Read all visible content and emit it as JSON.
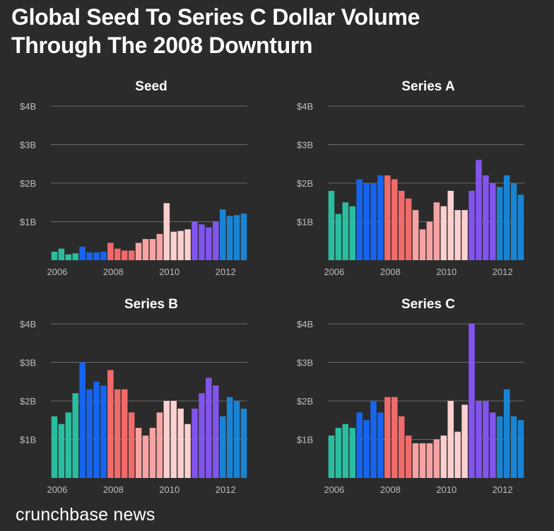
{
  "header": {
    "title_line1": "Global Seed To Series C Dollar Volume",
    "title_line2": "Through The 2008 Downturn"
  },
  "brand": "crunchbase news",
  "colors": {
    "2006": "#2bbd9f",
    "2007": "#1565f0",
    "2008": "#f26b6b",
    "2009": "#f7a3a3",
    "2010": "#fdd0d0",
    "2011": "#8155ee",
    "2012": "#1a84d4"
  },
  "chart_data": [
    {
      "type": "bar",
      "title": "Seed",
      "ylim": [
        0,
        4
      ],
      "yticks": [
        1,
        2,
        3,
        4
      ],
      "ytick_labels": [
        "$1B",
        "$2B",
        "$3B",
        "$4B"
      ],
      "xtick_labels": [
        "2006",
        "2008",
        "2010",
        "2012"
      ],
      "grid": true,
      "quarters": [
        "2006 Q1",
        "2006 Q2",
        "2006 Q3",
        "2006 Q4",
        "2007 Q1",
        "2007 Q2",
        "2007 Q3",
        "2007 Q4",
        "2008 Q1",
        "2008 Q2",
        "2008 Q3",
        "2008 Q4",
        "2009 Q1",
        "2009 Q2",
        "2009 Q3",
        "2009 Q4",
        "2010 Q1",
        "2010 Q2",
        "2010 Q3",
        "2010 Q4",
        "2011 Q1",
        "2011 Q2",
        "2011 Q3",
        "2011 Q4",
        "2012 Q1",
        "2012 Q2",
        "2012 Q3",
        "2012 Q4"
      ],
      "values": [
        0.22,
        0.3,
        0.15,
        0.18,
        0.35,
        0.2,
        0.2,
        0.22,
        0.45,
        0.3,
        0.25,
        0.25,
        0.45,
        0.55,
        0.55,
        0.68,
        1.48,
        0.74,
        0.76,
        0.8,
        1.0,
        0.93,
        0.85,
        1.0,
        1.32,
        1.15,
        1.17,
        1.21
      ]
    },
    {
      "type": "bar",
      "title": "Series A",
      "ylim": [
        0,
        4
      ],
      "yticks": [
        1,
        2,
        3,
        4
      ],
      "ytick_labels": [
        "$1B",
        "$2B",
        "$3B",
        "$4B"
      ],
      "xtick_labels": [
        "2006",
        "2008",
        "2010",
        "2012"
      ],
      "grid": true,
      "quarters": [
        "2006 Q1",
        "2006 Q2",
        "2006 Q3",
        "2006 Q4",
        "2007 Q1",
        "2007 Q2",
        "2007 Q3",
        "2007 Q4",
        "2008 Q1",
        "2008 Q2",
        "2008 Q3",
        "2008 Q4",
        "2009 Q1",
        "2009 Q2",
        "2009 Q3",
        "2009 Q4",
        "2010 Q1",
        "2010 Q2",
        "2010 Q3",
        "2010 Q4",
        "2011 Q1",
        "2011 Q2",
        "2011 Q3",
        "2011 Q4",
        "2012 Q1",
        "2012 Q2",
        "2012 Q3",
        "2012 Q4"
      ],
      "values": [
        1.8,
        1.2,
        1.5,
        1.4,
        2.1,
        2.0,
        2.0,
        2.2,
        2.2,
        2.1,
        1.8,
        1.6,
        1.3,
        0.8,
        1.0,
        1.5,
        1.4,
        1.8,
        1.3,
        1.3,
        1.8,
        2.6,
        2.2,
        2.0,
        1.9,
        2.2,
        2.0,
        1.7
      ]
    },
    {
      "type": "bar",
      "title": "Series B",
      "ylim": [
        0,
        4
      ],
      "yticks": [
        1,
        2,
        3,
        4
      ],
      "ytick_labels": [
        "$1B",
        "$2B",
        "$3B",
        "$4B"
      ],
      "xtick_labels": [
        "2006",
        "2008",
        "2010",
        "2012"
      ],
      "grid": true,
      "quarters": [
        "2006 Q1",
        "2006 Q2",
        "2006 Q3",
        "2006 Q4",
        "2007 Q1",
        "2007 Q2",
        "2007 Q3",
        "2007 Q4",
        "2008 Q1",
        "2008 Q2",
        "2008 Q3",
        "2008 Q4",
        "2009 Q1",
        "2009 Q2",
        "2009 Q3",
        "2009 Q4",
        "2010 Q1",
        "2010 Q2",
        "2010 Q3",
        "2010 Q4",
        "2011 Q1",
        "2011 Q2",
        "2011 Q3",
        "2011 Q4",
        "2012 Q1",
        "2012 Q2",
        "2012 Q3",
        "2012 Q4"
      ],
      "values": [
        1.6,
        1.4,
        1.7,
        2.2,
        3.0,
        2.3,
        2.5,
        2.4,
        2.8,
        2.3,
        2.3,
        1.7,
        1.3,
        1.1,
        1.3,
        1.7,
        2.0,
        2.0,
        1.8,
        1.4,
        1.8,
        2.2,
        2.6,
        2.4,
        1.6,
        2.1,
        2.0,
        1.8
      ]
    },
    {
      "type": "bar",
      "title": "Series C",
      "ylim": [
        0,
        4
      ],
      "yticks": [
        1,
        2,
        3,
        4
      ],
      "ytick_labels": [
        "$1B",
        "$2B",
        "$3B",
        "$4B"
      ],
      "xtick_labels": [
        "2006",
        "2008",
        "2010",
        "2012"
      ],
      "grid": true,
      "quarters": [
        "2006 Q1",
        "2006 Q2",
        "2006 Q3",
        "2006 Q4",
        "2007 Q1",
        "2007 Q2",
        "2007 Q3",
        "2007 Q4",
        "2008 Q1",
        "2008 Q2",
        "2008 Q3",
        "2008 Q4",
        "2009 Q1",
        "2009 Q2",
        "2009 Q3",
        "2009 Q4",
        "2010 Q1",
        "2010 Q2",
        "2010 Q3",
        "2010 Q4",
        "2011 Q1",
        "2011 Q2",
        "2011 Q3",
        "2011 Q4",
        "2012 Q1",
        "2012 Q2",
        "2012 Q3",
        "2012 Q4"
      ],
      "values": [
        1.1,
        1.3,
        1.4,
        1.3,
        1.7,
        1.5,
        2.0,
        1.7,
        2.1,
        2.1,
        1.6,
        1.1,
        0.9,
        0.9,
        0.9,
        1.0,
        1.1,
        2.0,
        1.2,
        1.9,
        4.0,
        2.0,
        2.0,
        1.7,
        1.6,
        2.3,
        1.6,
        1.5
      ]
    }
  ]
}
